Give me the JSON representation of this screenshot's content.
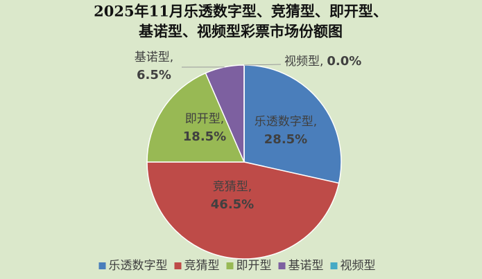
{
  "chart_data": {
    "type": "pie",
    "title": [
      "2025年11月乐透数字型、竞猜型、即开型、",
      "基诺型、视频型彩票市场份额图"
    ],
    "categories": [
      "乐透数字型",
      "竞猜型",
      "即开型",
      "基诺型",
      "视频型"
    ],
    "values": [
      28.5,
      46.5,
      18.5,
      6.5,
      0.0
    ],
    "value_labels": [
      "28.5%",
      "46.5%",
      "18.5%",
      "6.5%",
      "0.0%"
    ],
    "data_label_names": [
      "乐透数字型,",
      "竞猜型,",
      "即开型,",
      "基诺型,",
      "视频型,"
    ],
    "colors": [
      "#4a7ebb",
      "#be4b48",
      "#98b954",
      "#7d60a0",
      "#46aac5"
    ],
    "legend": "bottom"
  }
}
